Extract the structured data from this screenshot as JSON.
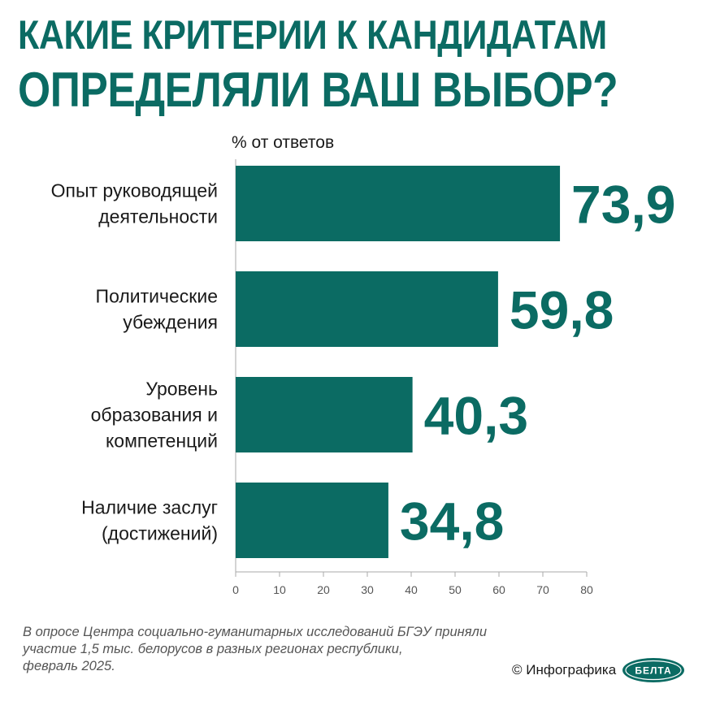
{
  "title": {
    "line1": "КАКИЕ КРИТЕРИИ К КАНДИДАТАМ",
    "line2": "ОПРЕДЕЛЯЛИ ВАШ ВЫБОР?"
  },
  "chart_data": {
    "type": "bar",
    "orientation": "horizontal",
    "units_label": "% от ответов",
    "categories": [
      [
        "Опыт руководящей",
        "деятельности"
      ],
      [
        "Политические",
        "убеждения"
      ],
      [
        "Уровень",
        "образования и",
        "компетенций"
      ],
      [
        "Наличие заслуг",
        "(достижений)"
      ]
    ],
    "values": [
      73.9,
      59.8,
      40.3,
      34.8
    ],
    "value_labels": [
      "73,9",
      "59,8",
      "40,3",
      "34,8"
    ],
    "xlim": [
      0,
      80
    ],
    "xticks": [
      "0",
      "10",
      "20",
      "30",
      "40",
      "50",
      "60",
      "70",
      "80"
    ],
    "bar_color": "#0b6b63",
    "grid": false
  },
  "footnote": {
    "lines": [
      "В опросе Центра социально-гуманитарных исследований БГЭУ приняли",
      "участие 1,5 тыс. белорусов в разных регионах республики,",
      "февраль 2025."
    ]
  },
  "credit": {
    "text": "© Инфографика",
    "logo_text": "БЕЛТА"
  },
  "colors": {
    "accent": "#0b6b63"
  }
}
